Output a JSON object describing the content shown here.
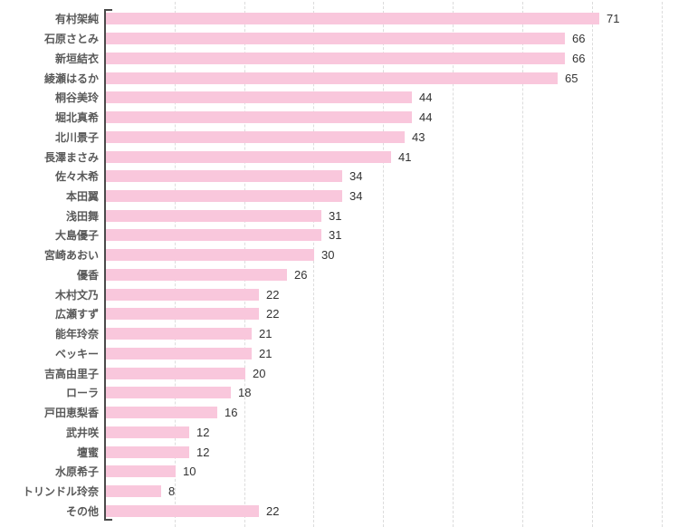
{
  "chart_data": {
    "type": "bar",
    "orientation": "horizontal",
    "title": "",
    "xlabel": "",
    "ylabel": "",
    "categories": [
      "有村架純",
      "石原さとみ",
      "新垣結衣",
      "綾瀬はるか",
      "桐谷美玲",
      "堀北真希",
      "北川景子",
      "長澤まさみ",
      "佐々木希",
      "本田翼",
      "浅田舞",
      "大島優子",
      "宮崎あおい",
      "優香",
      "木村文乃",
      "広瀬すず",
      "能年玲奈",
      "ベッキー",
      "吉高由里子",
      "ローラ",
      "戸田恵梨香",
      "武井咲",
      "壇蜜",
      "水原希子",
      "トリンドル玲奈",
      "その他"
    ],
    "values": [
      71,
      66,
      66,
      65,
      44,
      44,
      43,
      41,
      34,
      34,
      31,
      31,
      30,
      26,
      22,
      22,
      21,
      21,
      20,
      18,
      16,
      12,
      12,
      10,
      8,
      22
    ],
    "value_labels_shown": true,
    "xlim": [
      0,
      83.7
    ],
    "gridline_interval": 10,
    "grid": true,
    "legend": "none",
    "colors": {
      "bar": "#f9c7dc",
      "axis": "#4a4a4a",
      "gridline": "#dcdcdc",
      "category_label": "#595959",
      "value_label": "#333333",
      "background": "#ffffff"
    }
  }
}
